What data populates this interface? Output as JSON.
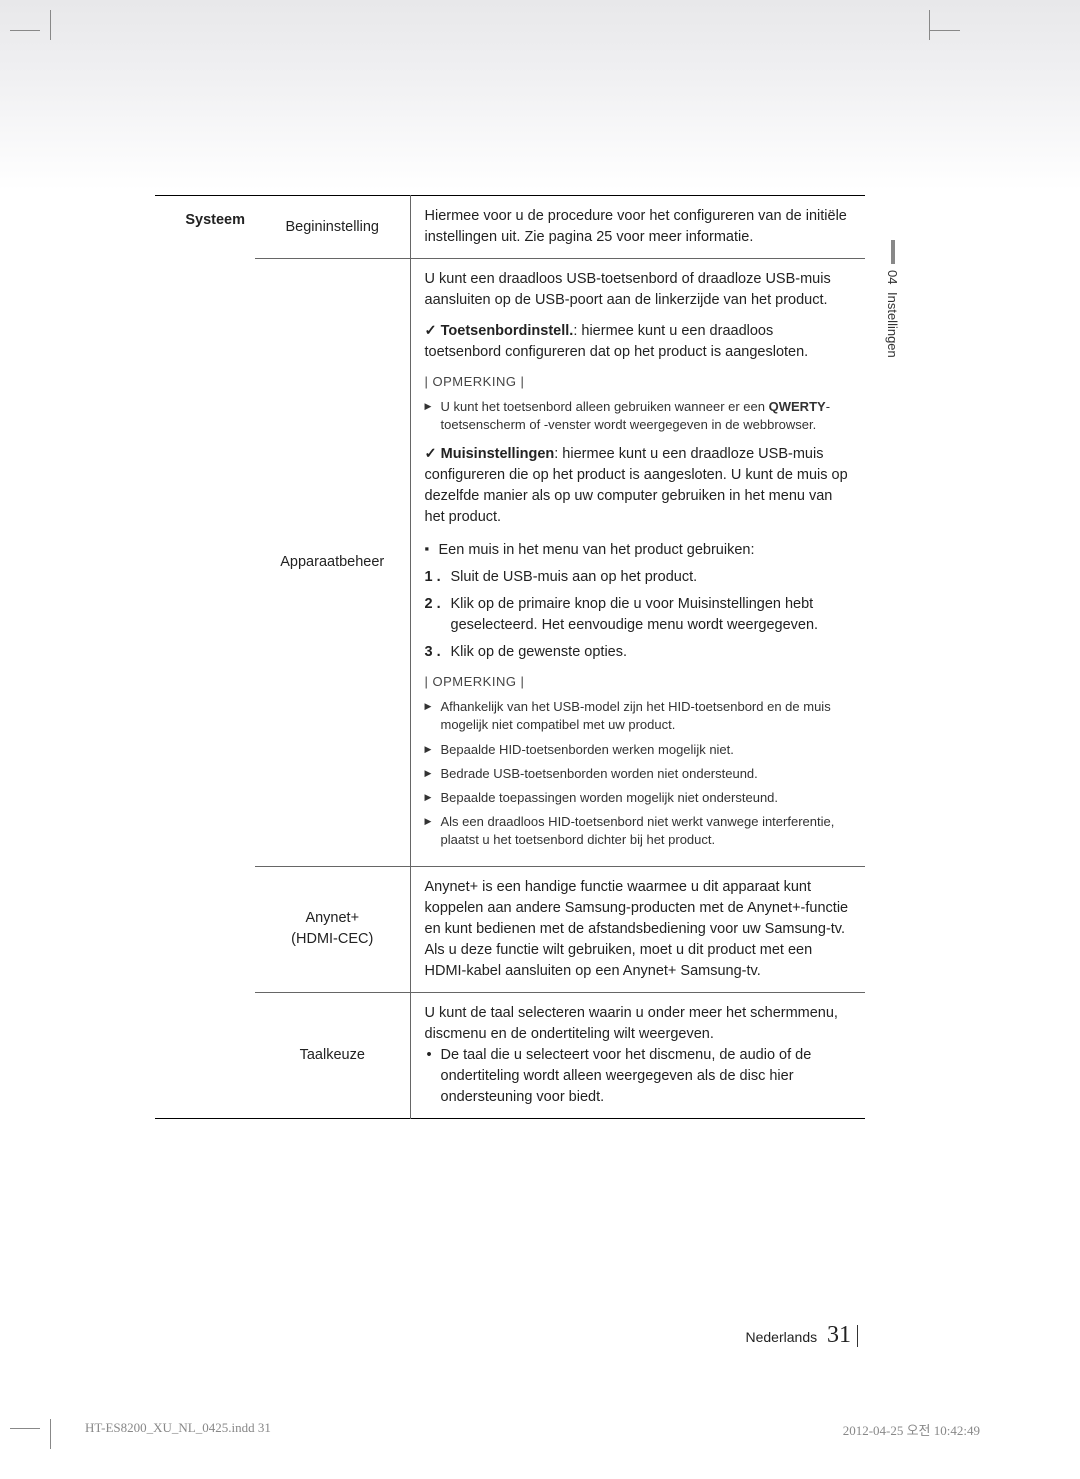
{
  "header": {
    "side_tab_num": "04",
    "side_tab_label": "Instellingen"
  },
  "table": {
    "category": "Systeem",
    "rows": [
      {
        "label": "Begininstelling",
        "desc_intro": "Hiermee voor u de procedure voor het configureren van de initiële instellingen uit. Zie pagina 25 voor meer informatie."
      },
      {
        "label": "Apparaatbeheer",
        "intro": "U kunt een draadloos USB-toetsenbord of draadloze USB-muis aansluiten op de USB-poort aan de linkerzijde van het product.",
        "check1_bold": "Toetsenbordinstell.",
        "check1_rest": ": hiermee kunt u een draadloos toetsenbord configureren dat op het product is aangesloten.",
        "opmerking1": "| OPMERKING |",
        "arrow1_a": "U kunt het toetsenbord alleen gebruiken wanneer er een ",
        "arrow1_bold": "QWERTY",
        "arrow1_b": "-toetsenscherm of -venster wordt weergegeven in de webbrowser.",
        "check2_bold": "Muisinstellingen",
        "check2_rest": ": hiermee kunt u een draadloze USB-muis configureren die op het product is aangesloten. U kunt de muis op dezelfde manier als op uw computer gebruiken in het menu van het product.",
        "square_heading": "Een muis in het menu van het product gebruiken:",
        "step1": "Sluit de USB-muis aan op het product.",
        "step2": "Klik op de primaire knop die u voor Muisinstellingen hebt geselecteerd. Het eenvoudige menu wordt weergegeven.",
        "step3": "Klik op de gewenste opties.",
        "opmerking2": "| OPMERKING |",
        "arrows2": [
          "Afhankelijk van het USB-model zijn het HID-toetsenbord en de muis mogelijk niet compatibel met uw product.",
          "Bepaalde HID-toetsenborden werken mogelijk niet.",
          "Bedrade USB-toetsenborden worden niet ondersteund.",
          "Bepaalde toepassingen worden mogelijk niet ondersteund.",
          "Als een draadloos HID-toetsenbord niet werkt vanwege interferentie, plaatst u het toetsenbord dichter bij het product."
        ]
      },
      {
        "label_l1": "Anynet+",
        "label_l2": "(HDMI-CEC)",
        "para1": "Anynet+ is een handige functie waarmee u dit apparaat kunt koppelen aan andere Samsung-producten met de Anynet+-functie en kunt bedienen met de afstandsbediening voor uw Samsung-tv.",
        "para2": "Als u deze functie wilt gebruiken, moet u dit product met een HDMI-kabel aansluiten op een Anynet+ Samsung-tv."
      },
      {
        "label": "Taalkeuze",
        "para1": "U kunt de taal selecteren waarin u onder meer het schermmenu, discmenu en de ondertiteling wilt weergeven.",
        "bullet": "De taal die u selecteert voor het discmenu, de audio of de ondertiteling wordt alleen weergegeven als de disc hier ondersteuning voor biedt."
      }
    ]
  },
  "footer": {
    "lang": "Nederlands",
    "page_num": "31"
  },
  "print_footer": {
    "left": "HT-ES8200_XU_NL_0425.indd   31",
    "right": "2012-04-25   오전 10:42:49"
  }
}
